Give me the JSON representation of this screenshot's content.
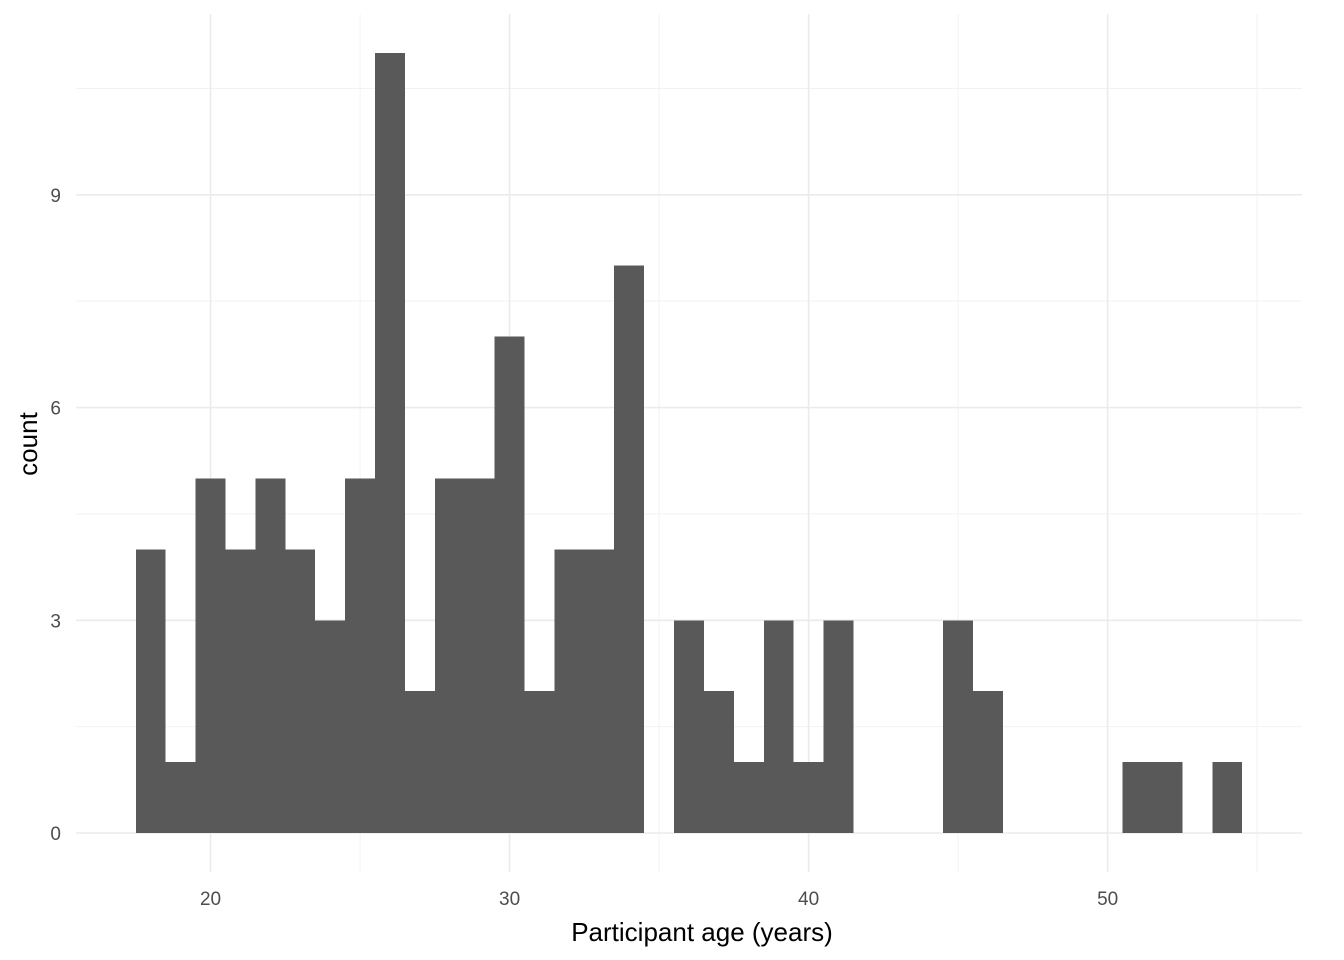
{
  "chart_data": {
    "type": "bar",
    "subtype": "histogram",
    "xlabel": "Participant age (years)",
    "ylabel": "count",
    "x_ticks": [
      20,
      30,
      40,
      50
    ],
    "y_ticks": [
      0,
      3,
      6,
      9
    ],
    "xlim": [
      15.5,
      56.5
    ],
    "ylim": [
      -0.55,
      11.55
    ],
    "bin_width": 1,
    "bins": [
      {
        "center": 18,
        "count": 4
      },
      {
        "center": 19,
        "count": 1
      },
      {
        "center": 20,
        "count": 5
      },
      {
        "center": 21,
        "count": 4
      },
      {
        "center": 22,
        "count": 5
      },
      {
        "center": 23,
        "count": 4
      },
      {
        "center": 24,
        "count": 3
      },
      {
        "center": 25,
        "count": 5
      },
      {
        "center": 26,
        "count": 11
      },
      {
        "center": 27,
        "count": 2
      },
      {
        "center": 28,
        "count": 5
      },
      {
        "center": 29,
        "count": 5
      },
      {
        "center": 30,
        "count": 7
      },
      {
        "center": 31,
        "count": 2
      },
      {
        "center": 32,
        "count": 4
      },
      {
        "center": 33,
        "count": 4
      },
      {
        "center": 34,
        "count": 8
      },
      {
        "center": 35,
        "count": 0
      },
      {
        "center": 36,
        "count": 3
      },
      {
        "center": 37,
        "count": 2
      },
      {
        "center": 38,
        "count": 1
      },
      {
        "center": 39,
        "count": 3
      },
      {
        "center": 40,
        "count": 1
      },
      {
        "center": 41,
        "count": 3
      },
      {
        "center": 42,
        "count": 0
      },
      {
        "center": 43,
        "count": 0
      },
      {
        "center": 44,
        "count": 0
      },
      {
        "center": 45,
        "count": 3
      },
      {
        "center": 46,
        "count": 2
      },
      {
        "center": 47,
        "count": 0
      },
      {
        "center": 48,
        "count": 0
      },
      {
        "center": 49,
        "count": 0
      },
      {
        "center": 50,
        "count": 0
      },
      {
        "center": 51,
        "count": 1
      },
      {
        "center": 52,
        "count": 1
      },
      {
        "center": 53,
        "count": 0
      },
      {
        "center": 54,
        "count": 1
      }
    ],
    "bar_color": "#595959",
    "grid": true,
    "legend": "none"
  }
}
